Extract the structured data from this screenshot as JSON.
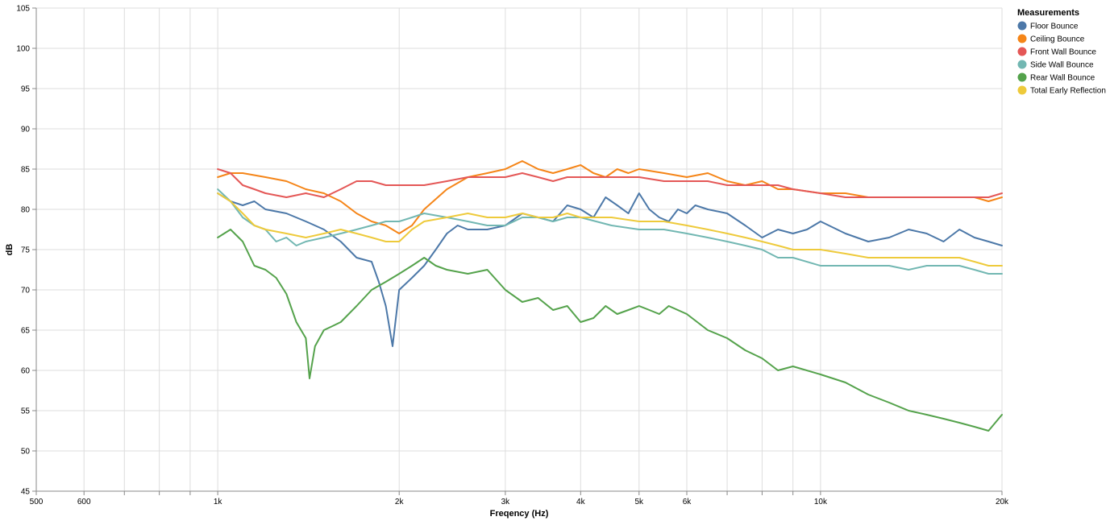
{
  "chart_data": {
    "type": "line",
    "xlabel": "Freqency (Hz)",
    "ylabel": "dB",
    "xscale": "log",
    "xlim": [
      500,
      20000
    ],
    "ylim": [
      45,
      105
    ],
    "grid": true,
    "legend_position": "right",
    "legend_title": "Measurements",
    "x_ticks": [
      {
        "value": 500,
        "label": "500"
      },
      {
        "value": 600,
        "label": "600"
      },
      {
        "value": 700,
        "label": ""
      },
      {
        "value": 800,
        "label": ""
      },
      {
        "value": 900,
        "label": ""
      },
      {
        "value": 1000,
        "label": "1k"
      },
      {
        "value": 2000,
        "label": "2k"
      },
      {
        "value": 3000,
        "label": "3k"
      },
      {
        "value": 4000,
        "label": "4k"
      },
      {
        "value": 5000,
        "label": "5k"
      },
      {
        "value": 6000,
        "label": "6k"
      },
      {
        "value": 7000,
        "label": ""
      },
      {
        "value": 8000,
        "label": ""
      },
      {
        "value": 9000,
        "label": ""
      },
      {
        "value": 10000,
        "label": "10k"
      },
      {
        "value": 20000,
        "label": "20k"
      }
    ],
    "y_ticks": [
      45,
      50,
      55,
      60,
      65,
      70,
      75,
      80,
      85,
      90,
      95,
      100,
      105
    ],
    "series": [
      {
        "name": "Floor Bounce",
        "color": "#4c78a8",
        "points": [
          [
            1000,
            82
          ],
          [
            1050,
            81
          ],
          [
            1100,
            80.5
          ],
          [
            1150,
            81
          ],
          [
            1200,
            80
          ],
          [
            1300,
            79.5
          ],
          [
            1400,
            78.5
          ],
          [
            1500,
            77.5
          ],
          [
            1600,
            76
          ],
          [
            1700,
            74
          ],
          [
            1800,
            73.5
          ],
          [
            1850,
            71
          ],
          [
            1900,
            68
          ],
          [
            1950,
            63
          ],
          [
            2000,
            70
          ],
          [
            2100,
            71.5
          ],
          [
            2200,
            73
          ],
          [
            2300,
            75
          ],
          [
            2400,
            77
          ],
          [
            2500,
            78
          ],
          [
            2600,
            77.5
          ],
          [
            2800,
            77.5
          ],
          [
            3000,
            78
          ],
          [
            3200,
            79.5
          ],
          [
            3400,
            79
          ],
          [
            3600,
            78.5
          ],
          [
            3800,
            80.5
          ],
          [
            4000,
            80
          ],
          [
            4200,
            79
          ],
          [
            4400,
            81.5
          ],
          [
            4600,
            80.5
          ],
          [
            4800,
            79.5
          ],
          [
            5000,
            82
          ],
          [
            5200,
            80
          ],
          [
            5400,
            79
          ],
          [
            5600,
            78.5
          ],
          [
            5800,
            80
          ],
          [
            6000,
            79.5
          ],
          [
            6200,
            80.5
          ],
          [
            6500,
            80
          ],
          [
            7000,
            79.5
          ],
          [
            7500,
            78
          ],
          [
            8000,
            76.5
          ],
          [
            8500,
            77.5
          ],
          [
            9000,
            77
          ],
          [
            9500,
            77.5
          ],
          [
            10000,
            78.5
          ],
          [
            11000,
            77
          ],
          [
            12000,
            76
          ],
          [
            13000,
            76.5
          ],
          [
            14000,
            77.5
          ],
          [
            15000,
            77
          ],
          [
            16000,
            76
          ],
          [
            17000,
            77.5
          ],
          [
            18000,
            76.5
          ],
          [
            19000,
            76
          ],
          [
            20000,
            75.5
          ]
        ]
      },
      {
        "name": "Ceiling Bounce",
        "color": "#f58518",
        "points": [
          [
            1000,
            84
          ],
          [
            1050,
            84.5
          ],
          [
            1100,
            84.5
          ],
          [
            1200,
            84
          ],
          [
            1300,
            83.5
          ],
          [
            1400,
            82.5
          ],
          [
            1500,
            82
          ],
          [
            1600,
            81
          ],
          [
            1700,
            79.5
          ],
          [
            1800,
            78.5
          ],
          [
            1900,
            78
          ],
          [
            2000,
            77
          ],
          [
            2100,
            78
          ],
          [
            2200,
            80
          ],
          [
            2400,
            82.5
          ],
          [
            2600,
            84
          ],
          [
            2800,
            84.5
          ],
          [
            3000,
            85
          ],
          [
            3200,
            86
          ],
          [
            3400,
            85
          ],
          [
            3600,
            84.5
          ],
          [
            3800,
            85
          ],
          [
            4000,
            85.5
          ],
          [
            4200,
            84.5
          ],
          [
            4400,
            84
          ],
          [
            4600,
            85
          ],
          [
            4800,
            84.5
          ],
          [
            5000,
            85
          ],
          [
            5500,
            84.5
          ],
          [
            6000,
            84
          ],
          [
            6500,
            84.5
          ],
          [
            7000,
            83.5
          ],
          [
            7500,
            83
          ],
          [
            8000,
            83.5
          ],
          [
            8500,
            82.5
          ],
          [
            9000,
            82.5
          ],
          [
            10000,
            82
          ],
          [
            11000,
            82
          ],
          [
            12000,
            81.5
          ],
          [
            13000,
            81.5
          ],
          [
            14000,
            81.5
          ],
          [
            15000,
            81.5
          ],
          [
            16000,
            81.5
          ],
          [
            17000,
            81.5
          ],
          [
            18000,
            81.5
          ],
          [
            19000,
            81
          ],
          [
            20000,
            81.5
          ]
        ]
      },
      {
        "name": "Front Wall Bounce",
        "color": "#e45756",
        "points": [
          [
            1000,
            85
          ],
          [
            1050,
            84.5
          ],
          [
            1100,
            83
          ],
          [
            1150,
            82.5
          ],
          [
            1200,
            82
          ],
          [
            1300,
            81.5
          ],
          [
            1400,
            82
          ],
          [
            1500,
            81.5
          ],
          [
            1600,
            82.5
          ],
          [
            1700,
            83.5
          ],
          [
            1800,
            83.5
          ],
          [
            1900,
            83
          ],
          [
            2000,
            83
          ],
          [
            2200,
            83
          ],
          [
            2400,
            83.5
          ],
          [
            2600,
            84
          ],
          [
            2800,
            84
          ],
          [
            3000,
            84
          ],
          [
            3200,
            84.5
          ],
          [
            3400,
            84
          ],
          [
            3600,
            83.5
          ],
          [
            3800,
            84
          ],
          [
            4000,
            84
          ],
          [
            4500,
            84
          ],
          [
            5000,
            84
          ],
          [
            5500,
            83.5
          ],
          [
            6000,
            83.5
          ],
          [
            6500,
            83.5
          ],
          [
            7000,
            83
          ],
          [
            7500,
            83
          ],
          [
            8000,
            83
          ],
          [
            8500,
            83
          ],
          [
            9000,
            82.5
          ],
          [
            10000,
            82
          ],
          [
            11000,
            81.5
          ],
          [
            12000,
            81.5
          ],
          [
            13000,
            81.5
          ],
          [
            14000,
            81.5
          ],
          [
            15000,
            81.5
          ],
          [
            16000,
            81.5
          ],
          [
            17000,
            81.5
          ],
          [
            18000,
            81.5
          ],
          [
            19000,
            81.5
          ],
          [
            20000,
            82
          ]
        ]
      },
      {
        "name": "Side Wall Bounce",
        "color": "#72b7b2",
        "points": [
          [
            1000,
            82.5
          ],
          [
            1050,
            81
          ],
          [
            1100,
            79
          ],
          [
            1150,
            78
          ],
          [
            1200,
            77.5
          ],
          [
            1250,
            76
          ],
          [
            1300,
            76.5
          ],
          [
            1350,
            75.5
          ],
          [
            1400,
            76
          ],
          [
            1500,
            76.5
          ],
          [
            1600,
            77
          ],
          [
            1700,
            77.5
          ],
          [
            1800,
            78
          ],
          [
            1900,
            78.5
          ],
          [
            2000,
            78.5
          ],
          [
            2100,
            79
          ],
          [
            2200,
            79.5
          ],
          [
            2400,
            79
          ],
          [
            2600,
            78.5
          ],
          [
            2800,
            78
          ],
          [
            3000,
            78
          ],
          [
            3200,
            79
          ],
          [
            3400,
            79
          ],
          [
            3600,
            78.5
          ],
          [
            3800,
            79
          ],
          [
            4000,
            79
          ],
          [
            4500,
            78
          ],
          [
            5000,
            77.5
          ],
          [
            5500,
            77.5
          ],
          [
            6000,
            77
          ],
          [
            6500,
            76.5
          ],
          [
            7000,
            76
          ],
          [
            7500,
            75.5
          ],
          [
            8000,
            75
          ],
          [
            8500,
            74
          ],
          [
            9000,
            74
          ],
          [
            10000,
            73
          ],
          [
            11000,
            73
          ],
          [
            12000,
            73
          ],
          [
            13000,
            73
          ],
          [
            14000,
            72.5
          ],
          [
            15000,
            73
          ],
          [
            16000,
            73
          ],
          [
            17000,
            73
          ],
          [
            18000,
            72.5
          ],
          [
            19000,
            72
          ],
          [
            20000,
            72
          ]
        ]
      },
      {
        "name": "Rear Wall Bounce",
        "color": "#54a24b",
        "points": [
          [
            1000,
            76.5
          ],
          [
            1050,
            77.5
          ],
          [
            1100,
            76
          ],
          [
            1150,
            73
          ],
          [
            1200,
            72.5
          ],
          [
            1250,
            71.5
          ],
          [
            1300,
            69.5
          ],
          [
            1350,
            66
          ],
          [
            1400,
            64
          ],
          [
            1420,
            59
          ],
          [
            1450,
            63
          ],
          [
            1500,
            65
          ],
          [
            1550,
            65.5
          ],
          [
            1600,
            66
          ],
          [
            1700,
            68
          ],
          [
            1800,
            70
          ],
          [
            1900,
            71
          ],
          [
            2000,
            72
          ],
          [
            2100,
            73
          ],
          [
            2200,
            74
          ],
          [
            2300,
            73
          ],
          [
            2400,
            72.5
          ],
          [
            2600,
            72
          ],
          [
            2800,
            72.5
          ],
          [
            3000,
            70
          ],
          [
            3200,
            68.5
          ],
          [
            3400,
            69
          ],
          [
            3600,
            67.5
          ],
          [
            3800,
            68
          ],
          [
            4000,
            66
          ],
          [
            4200,
            66.5
          ],
          [
            4400,
            68
          ],
          [
            4600,
            67
          ],
          [
            4800,
            67.5
          ],
          [
            5000,
            68
          ],
          [
            5200,
            67.5
          ],
          [
            5400,
            67
          ],
          [
            5600,
            68
          ],
          [
            6000,
            67
          ],
          [
            6500,
            65
          ],
          [
            7000,
            64
          ],
          [
            7500,
            62.5
          ],
          [
            8000,
            61.5
          ],
          [
            8500,
            60
          ],
          [
            9000,
            60.5
          ],
          [
            10000,
            59.5
          ],
          [
            11000,
            58.5
          ],
          [
            12000,
            57
          ],
          [
            13000,
            56
          ],
          [
            14000,
            55
          ],
          [
            15000,
            54.5
          ],
          [
            16000,
            54
          ],
          [
            17000,
            53.5
          ],
          [
            18000,
            53
          ],
          [
            19000,
            52.5
          ],
          [
            20000,
            54.5
          ]
        ]
      },
      {
        "name": "Total Early Reflection",
        "color": "#eeca3b",
        "points": [
          [
            1000,
            82
          ],
          [
            1050,
            81
          ],
          [
            1100,
            79.5
          ],
          [
            1150,
            78
          ],
          [
            1200,
            77.5
          ],
          [
            1300,
            77
          ],
          [
            1400,
            76.5
          ],
          [
            1500,
            77
          ],
          [
            1600,
            77.5
          ],
          [
            1700,
            77
          ],
          [
            1800,
            76.5
          ],
          [
            1900,
            76
          ],
          [
            2000,
            76
          ],
          [
            2100,
            77.5
          ],
          [
            2200,
            78.5
          ],
          [
            2400,
            79
          ],
          [
            2600,
            79.5
          ],
          [
            2800,
            79
          ],
          [
            3000,
            79
          ],
          [
            3200,
            79.5
          ],
          [
            3400,
            79
          ],
          [
            3600,
            79
          ],
          [
            3800,
            79.5
          ],
          [
            4000,
            79
          ],
          [
            4500,
            79
          ],
          [
            5000,
            78.5
          ],
          [
            5500,
            78.5
          ],
          [
            6000,
            78
          ],
          [
            6500,
            77.5
          ],
          [
            7000,
            77
          ],
          [
            7500,
            76.5
          ],
          [
            8000,
            76
          ],
          [
            8500,
            75.5
          ],
          [
            9000,
            75
          ],
          [
            10000,
            75
          ],
          [
            11000,
            74.5
          ],
          [
            12000,
            74
          ],
          [
            13000,
            74
          ],
          [
            14000,
            74
          ],
          [
            15000,
            74
          ],
          [
            16000,
            74
          ],
          [
            17000,
            74
          ],
          [
            18000,
            73.5
          ],
          [
            19000,
            73
          ],
          [
            20000,
            73
          ]
        ]
      }
    ]
  }
}
